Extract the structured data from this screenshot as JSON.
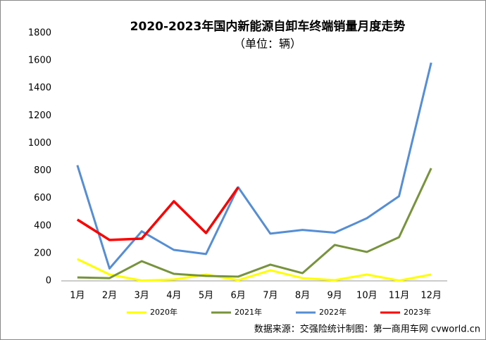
{
  "chart_data": {
    "type": "line",
    "title": "2020-2023年国内新能源自卸车终端销量月度走势",
    "subtitle": "（单位：辆）",
    "categories": [
      "1月",
      "2月",
      "3月",
      "4月",
      "5月",
      "6月",
      "7月",
      "8月",
      "9月",
      "10月",
      "11月",
      "12月"
    ],
    "series": [
      {
        "name": "2020年",
        "color": "#ffff00",
        "values": [
          158,
          46,
          2,
          10,
          46,
          5,
          77,
          20,
          5,
          46,
          2,
          46
        ]
      },
      {
        "name": "2021年",
        "color": "#77933c",
        "values": [
          25,
          20,
          143,
          51,
          36,
          31,
          118,
          56,
          261,
          210,
          317,
          818
        ]
      },
      {
        "name": "2022年",
        "color": "#558ed5",
        "values": [
          840,
          90,
          360,
          225,
          195,
          680,
          343,
          370,
          350,
          455,
          615,
          1585
        ]
      },
      {
        "name": "2023年",
        "color": "#ff0000",
        "values": [
          445,
          297,
          307,
          578,
          348,
          680,
          null,
          null,
          null,
          null,
          null,
          null
        ]
      }
    ],
    "ylim": [
      0,
      1800
    ],
    "yticks": [
      0,
      200,
      400,
      600,
      800,
      1000,
      1200,
      1400,
      1600,
      1800
    ],
    "grid": false,
    "legend": "bottom",
    "source": "数据来源：交强险统计制图：第一商用车网 cvworld.cn"
  }
}
